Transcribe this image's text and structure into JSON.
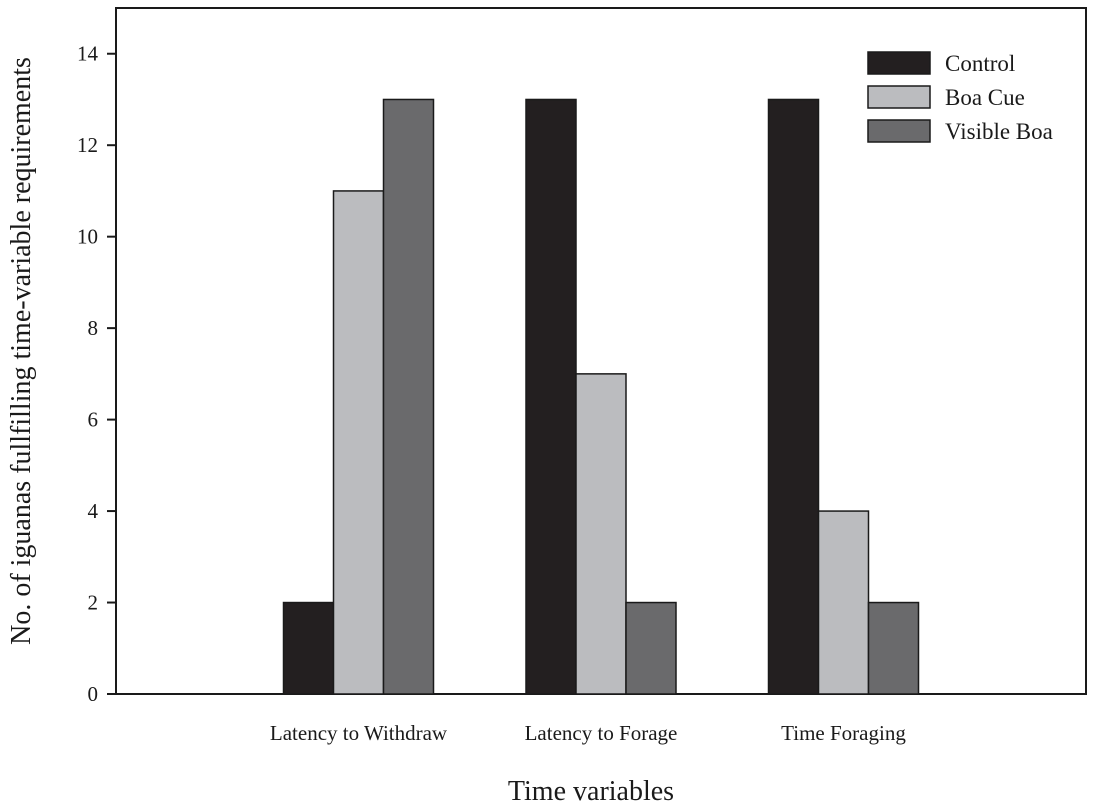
{
  "chart_data": {
    "type": "bar",
    "title": "",
    "xlabel": "Time variables",
    "ylabel": "No. of iguanas fullfilling time-variable requirements",
    "categories": [
      "Latency to Withdraw",
      "Latency to Forage",
      "Time Foraging"
    ],
    "series": [
      {
        "name": "Control",
        "color": "#231f20",
        "values": [
          2,
          13,
          13
        ]
      },
      {
        "name": "Boa Cue",
        "color": "#bbbcbf",
        "values": [
          11,
          7,
          4
        ]
      },
      {
        "name": "Visible Boa",
        "color": "#6a6a6c",
        "values": [
          13,
          2,
          2
        ]
      }
    ],
    "ylim": [
      0,
      15
    ],
    "yticks": [
      0,
      2,
      4,
      6,
      8,
      10,
      12,
      14
    ],
    "grid": false,
    "legend_position": "top-right"
  }
}
